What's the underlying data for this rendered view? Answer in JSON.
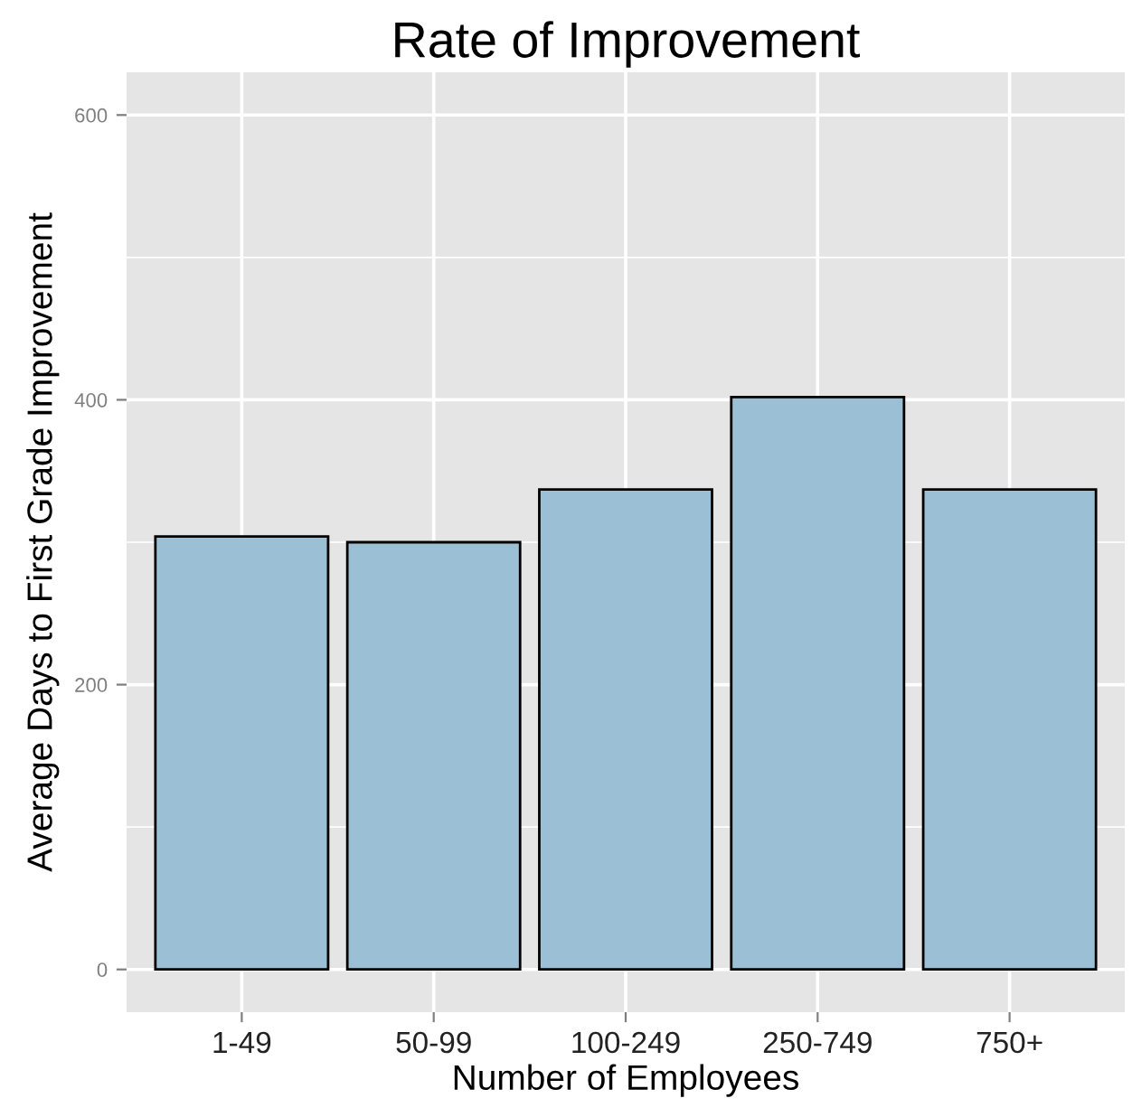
{
  "chart_data": {
    "type": "bar",
    "title": "Rate of Improvement",
    "xlabel": "Number of Employees",
    "ylabel": "Average Days to First Grade Improvement",
    "categories": [
      "1-49",
      "50-99",
      "100-249",
      "250-749",
      "750+"
    ],
    "values": [
      304,
      300,
      337,
      402,
      337
    ],
    "color": "#9bc0d6",
    "ylim": [
      -30,
      630
    ],
    "yticks": [
      0,
      200,
      400,
      600
    ],
    "grid": true
  }
}
